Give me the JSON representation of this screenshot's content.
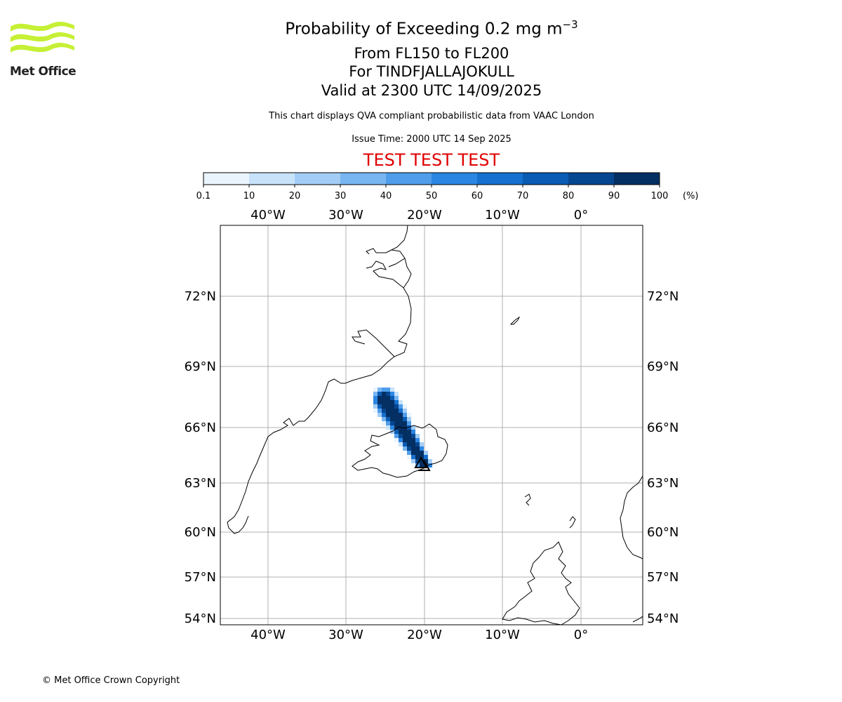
{
  "logo": {
    "name": "Met Office",
    "wave_color": "#c6f035"
  },
  "title": {
    "line1_main": "Probability of Exceeding 0.2 mg m",
    "line1_sup": "−3",
    "line2": "From FL150 to FL200",
    "line3": "For TINDFJALLAJOKULL",
    "line4": "Valid at 2300 UTC 14/09/2025"
  },
  "description": "This chart displays QVA compliant probabilistic data from VAAC London",
  "issue_time": "Issue Time: 2000 UTC 14 Sep 2025",
  "test_banner": "TEST TEST TEST",
  "colorbar": {
    "ticks": [
      "0.1",
      "10",
      "20",
      "30",
      "40",
      "50",
      "60",
      "70",
      "80",
      "90",
      "100"
    ],
    "unit": "(%)",
    "colors": [
      "#eaf4fd",
      "#c8e2f9",
      "#a3cdf6",
      "#78b6f2",
      "#4f9deb",
      "#2b86e3",
      "#1570cf",
      "#0a5bb3",
      "#064791",
      "#032f63"
    ]
  },
  "map": {
    "lon_labels": [
      "40°W",
      "30°W",
      "20°W",
      "10°W",
      "0°"
    ],
    "lat_labels": [
      "72°N",
      "69°N",
      "66°N",
      "63°N",
      "60°N",
      "57°N",
      "54°N"
    ],
    "gridline_color": "#b0b0b0",
    "coastline_color": "#000000",
    "volcano_marker": "triangle-icon"
  },
  "copyright": "© Met Office Crown Copyright"
}
